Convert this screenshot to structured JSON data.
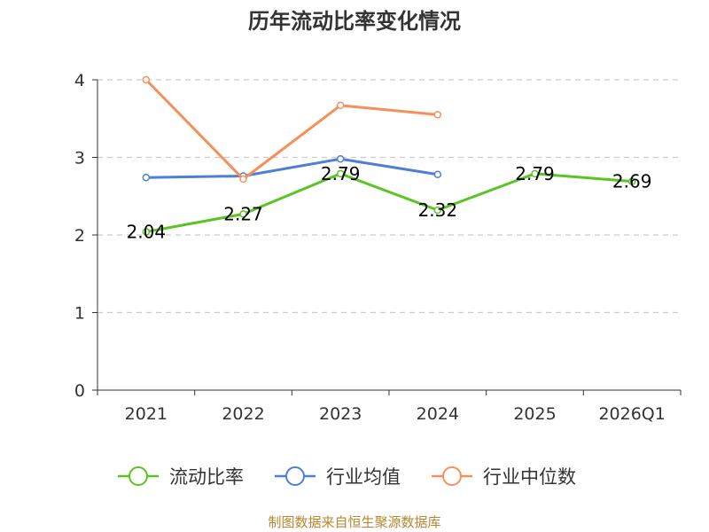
{
  "chart_data": {
    "type": "line",
    "title": "历年流动比率变化情况",
    "categories": [
      "2021",
      "2022",
      "2023",
      "2024",
      "2025",
      "2026Q1"
    ],
    "ylim": [
      0,
      4
    ],
    "yticks": [
      0,
      1,
      2,
      3,
      4
    ],
    "grid": true,
    "legend_position": "bottom",
    "series": [
      {
        "name": "流动比率",
        "color": "#5bc424",
        "values": [
          2.04,
          2.27,
          2.79,
          2.32,
          2.79,
          2.69
        ],
        "labels": [
          "2.04",
          "2.27",
          "2.79",
          "2.32",
          "2.79",
          "2.69"
        ]
      },
      {
        "name": "行业均值",
        "color": "#4e7fd6",
        "values": [
          2.74,
          2.76,
          2.98,
          2.78,
          null,
          null
        ]
      },
      {
        "name": "行业中位数",
        "color": "#f5905a",
        "values": [
          4.0,
          2.72,
          3.67,
          3.55,
          null,
          null
        ]
      }
    ],
    "source": "制图数据来自恒生聚源数据库"
  }
}
